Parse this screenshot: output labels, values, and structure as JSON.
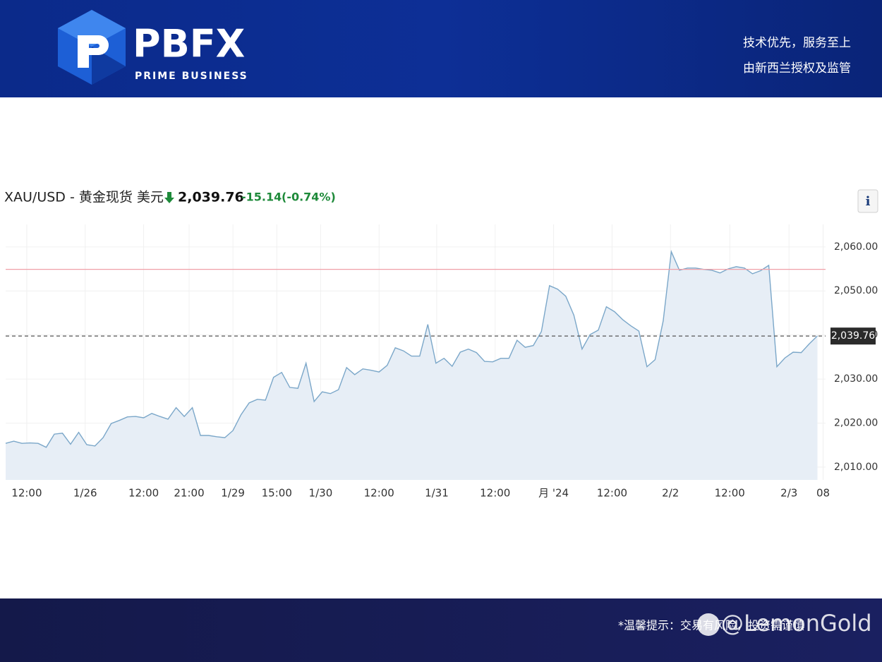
{
  "header": {
    "brand": "PBFX",
    "tagline": "PRIME BUSINESS",
    "slogan_1": "技术优先，服务至上",
    "slogan_2": "由新西兰授权及监管"
  },
  "chart_data": {
    "type": "line",
    "title": "XAU/USD - 黄金现货 美元",
    "price": {
      "value": 2039.76,
      "label": "2,039.76"
    },
    "change": "-15.14",
    "change_percent": "(-0.74%)",
    "info_button": "i",
    "previous_close": 2054.9,
    "previous_close_color": "#f0a0a8",
    "color": "#7ba7c9",
    "area_color": "#e7eef6",
    "grid": true,
    "values": [
      2015.4,
      2015.9,
      2015.4,
      2015.5,
      2015.4,
      2014.5,
      2017.5,
      2017.7,
      2015.2,
      2017.9,
      2015.1,
      2014.8,
      2016.7,
      2019.9,
      2020.6,
      2021.4,
      2021.5,
      2021.2,
      2022.2,
      2021.5,
      2020.9,
      2023.5,
      2021.5,
      2023.5,
      2017.2,
      2017.2,
      2016.9,
      2016.7,
      2018.3,
      2021.9,
      2024.6,
      2025.4,
      2025.2,
      2030.4,
      2031.5,
      2028.1,
      2027.9,
      2033.6,
      2024.9,
      2027.1,
      2026.7,
      2027.6,
      2032.6,
      2031.0,
      2032.3,
      2032.0,
      2031.6,
      2033.1,
      2037.1,
      2036.4,
      2035.2,
      2035.2,
      2042.4,
      2033.6,
      2034.7,
      2032.9,
      2036.1,
      2036.8,
      2036.0,
      2034.0,
      2033.9,
      2034.7,
      2034.7,
      2038.8,
      2037.2,
      2037.6,
      2040.8,
      2051.2,
      2050.4,
      2048.8,
      2044.5,
      2036.8,
      2040.1,
      2041.1,
      2046.4,
      2045.3,
      2043.5,
      2042.1,
      2040.9,
      2032.8,
      2034.4,
      2043.2,
      2058.9,
      2054.7,
      2055.2,
      2055.2,
      2054.9,
      2054.7,
      2054.1,
      2055.0,
      2055.5,
      2055.2,
      2053.9,
      2054.6,
      2055.8,
      2032.8,
      2034.8,
      2036.1,
      2036.0,
      2038.0,
      2039.8
    ],
    "xlim": [
      0,
      101
    ],
    "xticks": [
      {
        "value": 2.6,
        "label": "12:00"
      },
      {
        "value": 9.8,
        "label": "1/26"
      },
      {
        "value": 17,
        "label": "12:00"
      },
      {
        "value": 22.6,
        "label": "21:00"
      },
      {
        "value": 28,
        "label": "1/29"
      },
      {
        "value": 33.4,
        "label": "15:00"
      },
      {
        "value": 38.8,
        "label": "1/30"
      },
      {
        "value": 46,
        "label": "12:00"
      },
      {
        "value": 53.1,
        "label": "1/31"
      },
      {
        "value": 60.3,
        "label": "12:00"
      },
      {
        "value": 67.5,
        "label": "月 '24"
      },
      {
        "value": 74.7,
        "label": "12:00"
      },
      {
        "value": 81.9,
        "label": "2/2"
      },
      {
        "value": 89.2,
        "label": "12:00"
      },
      {
        "value": 96.5,
        "label": "2/3"
      },
      {
        "value": 100.7,
        "label": "08"
      }
    ],
    "ylim": [
      2007.1,
      2065.1
    ],
    "yticks": [
      {
        "value": 2010,
        "label": "2,010.00"
      },
      {
        "value": 2020,
        "label": "2,020.00"
      },
      {
        "value": 2030,
        "label": "2,030.00"
      },
      {
        "value": 2040,
        "label": "2,040.00"
      },
      {
        "value": 2050,
        "label": "2,050.00"
      },
      {
        "value": 2060,
        "label": "2,060.00"
      }
    ]
  },
  "footer": {
    "notice": "*温馨提示：交易有风险，投资需谨慎",
    "watermark": "@LemonGold"
  }
}
